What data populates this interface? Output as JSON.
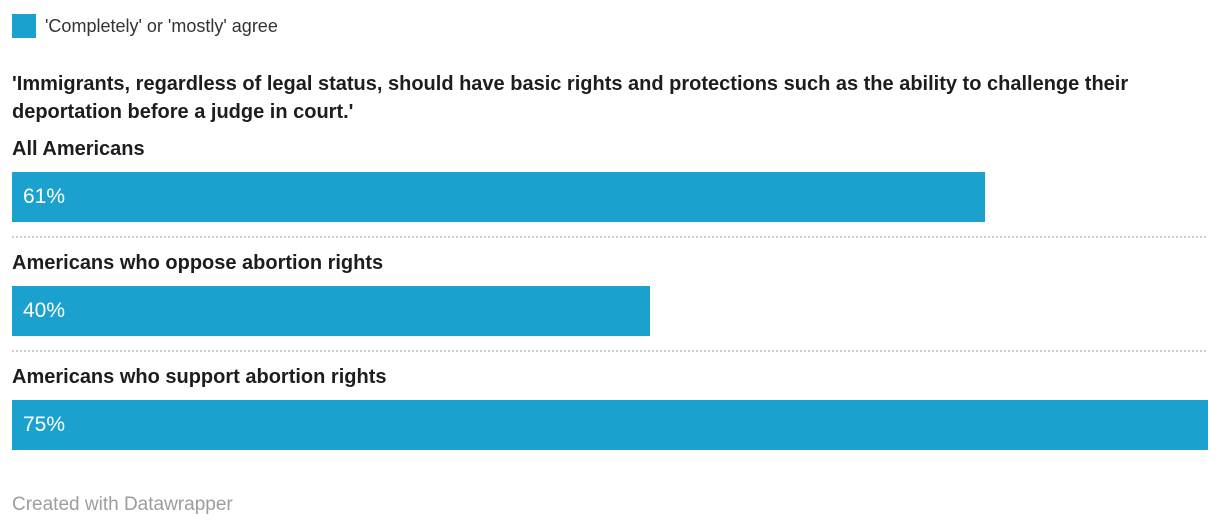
{
  "legend": {
    "label": "'Completely' or 'mostly' agree",
    "swatch_color": "#1aa1ce"
  },
  "title": "'Immigrants, regardless of legal status, should have basic rights and protections such as the ability to challenge their deportation before a judge in court.'",
  "footer": {
    "credit": "Created with Datawrapper"
  },
  "chart_data": {
    "type": "bar",
    "orientation": "horizontal",
    "title": "'Immigrants, regardless of legal status, should have basic rights and protections such as the ability to challenge their deportation before a judge in court.'",
    "legend": "'Completely' or 'mostly' agree",
    "legend_position": "top",
    "categories": [
      "All Americans",
      "Americans who oppose abortion rights",
      "Americans who support abortion rights"
    ],
    "values": [
      61,
      40,
      75
    ],
    "value_labels": [
      "61%",
      "40%",
      "75%"
    ],
    "unit": "%",
    "scale_max": 75,
    "bar_color": "#1aa1ce",
    "value_label_color": "#ffffff",
    "grid": false,
    "axis_ticks": "none"
  }
}
